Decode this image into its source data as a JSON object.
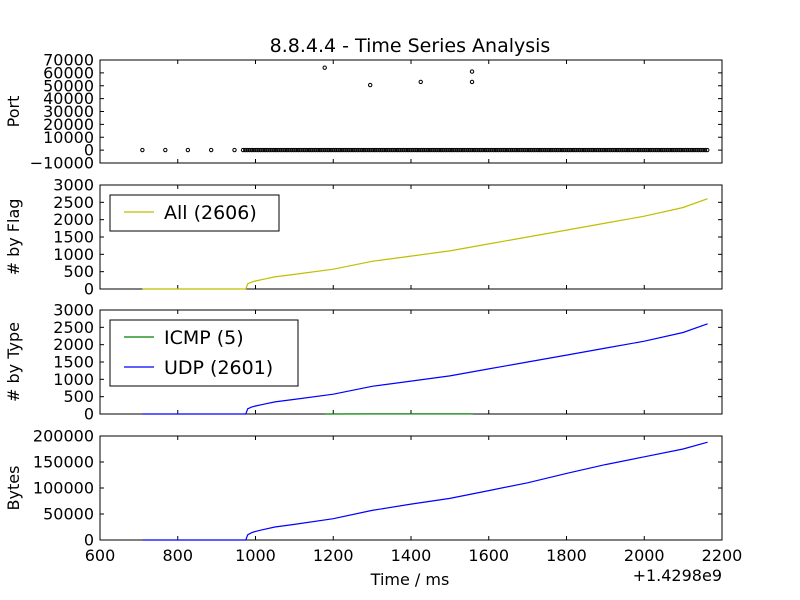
{
  "chart_data": [
    {
      "type": "scatter",
      "title": "8.8.4.4 - Time Series Analysis",
      "xlabel": "",
      "ylabel": "Port",
      "xlim": [
        600,
        2200
      ],
      "ylim": [
        -10000,
        70000
      ],
      "x_ticks": [
        600,
        800,
        1000,
        1200,
        1400,
        1600,
        1800,
        2000,
        2200
      ],
      "y_ticks": [
        -10000,
        0,
        10000,
        20000,
        30000,
        40000,
        50000,
        60000,
        70000
      ],
      "y_tick_labels": [
        "−10000",
        "0",
        "10000",
        "20000",
        "30000",
        "40000",
        "50000",
        "60000",
        "70000"
      ],
      "points": [
        [
          709,
          53
        ],
        [
          768,
          53
        ],
        [
          826,
          53
        ],
        [
          886,
          53
        ],
        [
          946,
          53
        ],
        [
          1178,
          64000
        ],
        [
          1295,
          50500
        ],
        [
          1425,
          53000
        ],
        [
          1557,
          61000
        ],
        [
          1557,
          53000
        ]
      ],
      "dense_band": {
        "x_from": 968,
        "x_to": 2163,
        "y": 53
      },
      "grid": false
    },
    {
      "type": "line",
      "xlabel": "",
      "ylabel": "# by Flag",
      "xlim": [
        600,
        2200
      ],
      "ylim": [
        0,
        3000
      ],
      "y_ticks": [
        0,
        500,
        1000,
        1500,
        2000,
        2500,
        3000
      ],
      "legend": {
        "position": "upper-left"
      },
      "series": [
        {
          "name": "All (2606)",
          "color": "#bfbf00",
          "x": [
            709,
            975,
            980,
            990,
            1000,
            1020,
            1050,
            1100,
            1200,
            1300,
            1400,
            1500,
            1600,
            1700,
            1800,
            1900,
            2000,
            2100,
            2163
          ],
          "y": [
            0,
            0,
            150,
            200,
            230,
            280,
            350,
            420,
            570,
            800,
            950,
            1100,
            1300,
            1500,
            1700,
            1900,
            2100,
            2350,
            2606
          ]
        }
      ],
      "grid": false
    },
    {
      "type": "line",
      "xlabel": "",
      "ylabel": "# by Type",
      "xlim": [
        600,
        2200
      ],
      "ylim": [
        0,
        3000
      ],
      "y_ticks": [
        0,
        500,
        1000,
        1500,
        2000,
        2500,
        3000
      ],
      "legend": {
        "position": "upper-left"
      },
      "series": [
        {
          "name": "ICMP (5)",
          "color": "#007f00",
          "x": [
            1178,
            1295,
            1425,
            1557,
            1560
          ],
          "y": [
            1,
            2,
            3,
            4,
            5
          ]
        },
        {
          "name": "UDP (2601)",
          "color": "#0000ff",
          "x": [
            709,
            975,
            980,
            990,
            1000,
            1020,
            1050,
            1100,
            1200,
            1300,
            1400,
            1500,
            1600,
            1700,
            1800,
            1900,
            2000,
            2100,
            2163
          ],
          "y": [
            0,
            0,
            150,
            200,
            230,
            280,
            350,
            420,
            570,
            800,
            950,
            1100,
            1300,
            1500,
            1700,
            1900,
            2100,
            2350,
            2601
          ]
        }
      ],
      "grid": false
    },
    {
      "type": "line",
      "xlabel": "Time / ms",
      "ylabel": "Bytes",
      "xlim": [
        600,
        2200
      ],
      "ylim": [
        0,
        200000
      ],
      "y_ticks": [
        0,
        50000,
        100000,
        150000,
        200000
      ],
      "x_ticks": [
        600,
        800,
        1000,
        1200,
        1400,
        1600,
        1800,
        2000,
        2200
      ],
      "x_offset_label": "+1.4298e9",
      "series": [
        {
          "color": "#0000ff",
          "x": [
            709,
            975,
            980,
            990,
            1000,
            1020,
            1050,
            1100,
            1200,
            1300,
            1400,
            1500,
            1600,
            1700,
            1800,
            1900,
            2000,
            2100,
            2163
          ],
          "y": [
            0,
            0,
            10000,
            14000,
            16500,
            20000,
            25000,
            30000,
            41000,
            57000,
            69000,
            80000,
            95000,
            110000,
            128000,
            145000,
            160000,
            175000,
            188000
          ]
        }
      ],
      "grid": false
    }
  ]
}
